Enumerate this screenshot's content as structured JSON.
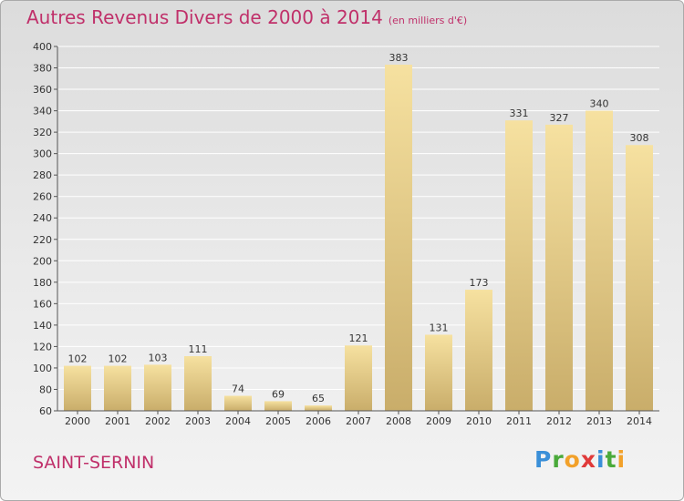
{
  "title": "Autres Revenus Divers de 2000 à 2014",
  "subtitle": "(en milliers d'€)",
  "town": "SAINT-SERNIN",
  "logo": {
    "letters": [
      {
        "ch": "P",
        "color": "#3a8fd8"
      },
      {
        "ch": "r",
        "color": "#4aaa3a"
      },
      {
        "ch": "o",
        "color": "#f2a12a"
      },
      {
        "ch": "x",
        "color": "#e03a3a"
      },
      {
        "ch": "i",
        "color": "#3a8fd8"
      },
      {
        "ch": "t",
        "color": "#4aaa3a"
      },
      {
        "ch": "i",
        "color": "#f2a12a"
      }
    ]
  },
  "colors": {
    "title": "#c0306a",
    "bar_light": "#f6e1a0",
    "bar_dark": "#c9ad6a",
    "grid": "#ffffff"
  },
  "chart_data": {
    "type": "bar",
    "title": "Autres Revenus Divers de 2000 à 2014",
    "subtitle": "(en milliers d'€)",
    "xlabel": "",
    "ylabel": "",
    "categories": [
      "2000",
      "2001",
      "2002",
      "2003",
      "2004",
      "2005",
      "2006",
      "2007",
      "2008",
      "2009",
      "2010",
      "2011",
      "2012",
      "2013",
      "2014"
    ],
    "values": [
      102,
      102,
      103,
      111,
      74,
      69,
      65,
      121,
      383,
      131,
      173,
      331,
      327,
      340,
      308
    ],
    "ylim": [
      60,
      400
    ],
    "yticks": [
      60,
      80,
      100,
      120,
      140,
      160,
      180,
      200,
      220,
      240,
      260,
      280,
      300,
      320,
      340,
      360,
      380,
      400
    ],
    "grid": true,
    "data_labels": true
  }
}
